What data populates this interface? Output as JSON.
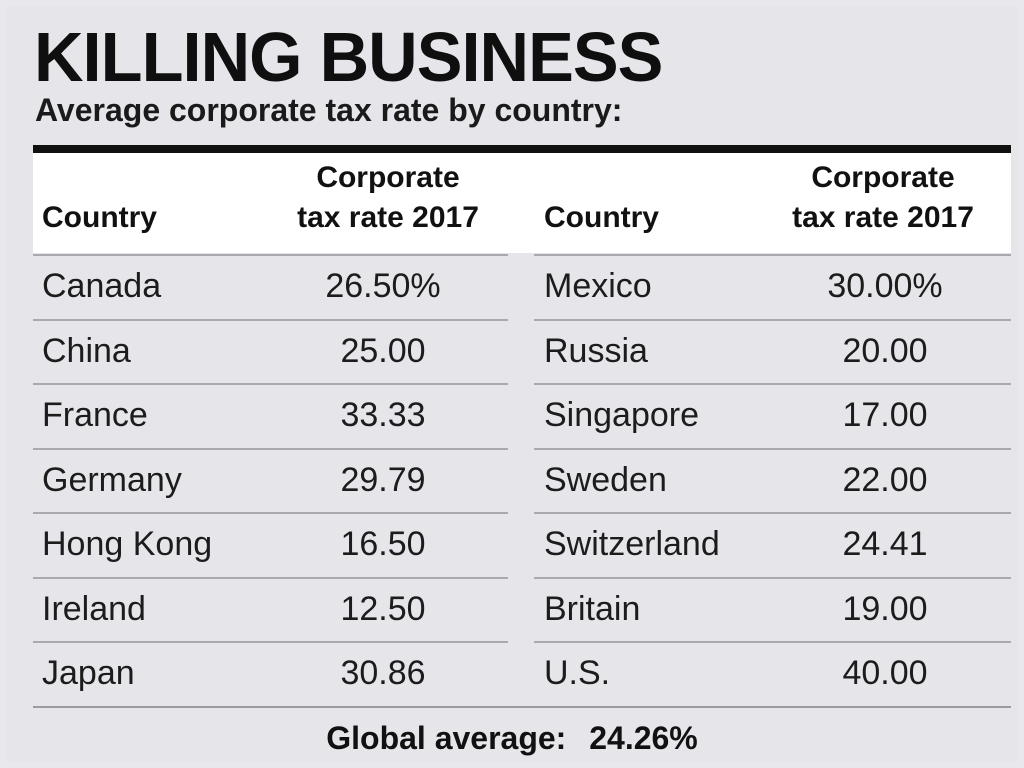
{
  "header": {
    "title": "KILLING BUSINESS",
    "subtitle": "Average corporate tax rate by country:"
  },
  "columns": {
    "country": "Country",
    "rate_line1": "Corporate",
    "rate_line2": "tax rate 2017"
  },
  "chart_data": {
    "type": "table",
    "title": "KILLING BUSINESS",
    "subtitle": "Average corporate tax rate by country:",
    "headers": [
      "Country",
      "Corporate tax rate 2017",
      "Country",
      "Corporate tax rate 2017"
    ],
    "left": [
      {
        "country": "Canada",
        "rate": "26.50%"
      },
      {
        "country": "China",
        "rate": "25.00"
      },
      {
        "country": "France",
        "rate": "33.33"
      },
      {
        "country": "Germany",
        "rate": "29.79"
      },
      {
        "country": "Hong Kong",
        "rate": "16.50"
      },
      {
        "country": "Ireland",
        "rate": "12.50"
      },
      {
        "country": "Japan",
        "rate": "30.86"
      }
    ],
    "right": [
      {
        "country": "Mexico",
        "rate": "30.00%"
      },
      {
        "country": "Russia",
        "rate": "20.00"
      },
      {
        "country": "Singapore",
        "rate": "17.00"
      },
      {
        "country": "Sweden",
        "rate": "22.00"
      },
      {
        "country": "Switzerland",
        "rate": "24.41"
      },
      {
        "country": "Britain",
        "rate": "19.00"
      },
      {
        "country": "U.S.",
        "rate": "40.00"
      }
    ]
  },
  "footer": {
    "label": "Global average:",
    "value": "24.26%"
  }
}
